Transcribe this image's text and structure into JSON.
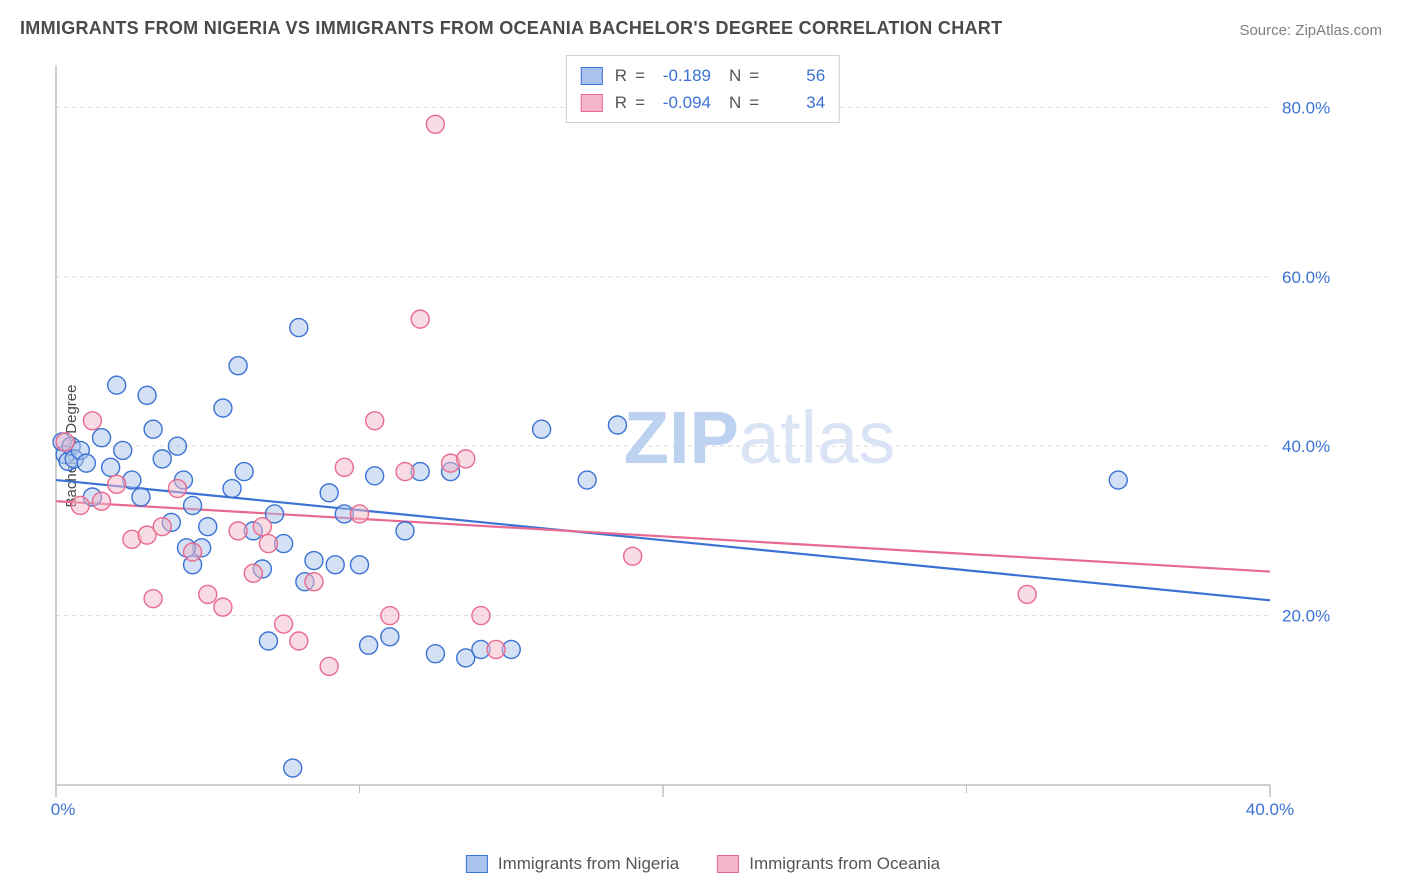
{
  "title": "IMMIGRANTS FROM NIGERIA VS IMMIGRANTS FROM OCEANIA BACHELOR'S DEGREE CORRELATION CHART",
  "source": "Source: ZipAtlas.com",
  "ylabel": "Bachelor's Degree",
  "watermark": "ZIPatlas",
  "chart": {
    "type": "scatter",
    "background_color": "#ffffff",
    "grid_color": "#d9d9d9",
    "axis_color": "#bfbfbf",
    "xlim": [
      0,
      40
    ],
    "ylim": [
      0,
      85
    ],
    "x_ticks": [
      0,
      20,
      40
    ],
    "x_tick_labels": [
      "0.0%",
      "",
      "40.0%"
    ],
    "x_minor_ticks": [
      10,
      30
    ],
    "y_ticks": [
      20,
      40,
      60,
      80
    ],
    "y_tick_labels": [
      "20.0%",
      "40.0%",
      "60.0%",
      "80.0%"
    ],
    "marker_radius": 9,
    "marker_fill_opacity": 0.5,
    "marker_stroke_width": 1.4,
    "line_width": 2.2,
    "series": [
      {
        "id": "nigeria",
        "label": "Immigrants from Nigeria",
        "R": "-0.189",
        "N": "56",
        "color": "#3b72d4",
        "fill": "#a9c3ec",
        "trend": {
          "y_at_xmin": 36.0,
          "y_at_xmax": 21.8
        },
        "points": [
          [
            0.2,
            40.5
          ],
          [
            0.3,
            39.0
          ],
          [
            0.4,
            38.2
          ],
          [
            0.5,
            40.0
          ],
          [
            0.6,
            38.5
          ],
          [
            0.8,
            39.5
          ],
          [
            1.0,
            38.0
          ],
          [
            1.5,
            41.0
          ],
          [
            1.8,
            37.5
          ],
          [
            2.0,
            47.2
          ],
          [
            2.2,
            39.5
          ],
          [
            2.5,
            36.0
          ],
          [
            3.0,
            46.0
          ],
          [
            3.2,
            42.0
          ],
          [
            3.5,
            38.5
          ],
          [
            4.0,
            40.0
          ],
          [
            4.2,
            36.0
          ],
          [
            4.5,
            33.0
          ],
          [
            4.8,
            28.0
          ],
          [
            5.0,
            30.5
          ],
          [
            5.5,
            44.5
          ],
          [
            6.0,
            49.5
          ],
          [
            6.2,
            37.0
          ],
          [
            6.5,
            30.0
          ],
          [
            7.0,
            17.0
          ],
          [
            7.5,
            28.5
          ],
          [
            7.8,
            2.0
          ],
          [
            8.0,
            54.0
          ],
          [
            8.5,
            26.5
          ],
          [
            9.0,
            34.5
          ],
          [
            9.5,
            32.0
          ],
          [
            10.0,
            26.0
          ],
          [
            10.3,
            16.5
          ],
          [
            10.5,
            36.5
          ],
          [
            11.0,
            17.5
          ],
          [
            11.5,
            30.0
          ],
          [
            12.0,
            37.0
          ],
          [
            12.5,
            15.5
          ],
          [
            13.0,
            37.0
          ],
          [
            13.5,
            15.0
          ],
          [
            14.0,
            16.0
          ],
          [
            15.0,
            16.0
          ],
          [
            16.0,
            42.0
          ],
          [
            17.5,
            36.0
          ],
          [
            18.5,
            42.5
          ],
          [
            35.0,
            36.0
          ],
          [
            4.5,
            26.0
          ],
          [
            5.8,
            35.0
          ],
          [
            6.8,
            25.5
          ],
          [
            7.2,
            32.0
          ],
          [
            8.2,
            24.0
          ],
          [
            9.2,
            26.0
          ],
          [
            3.8,
            31.0
          ],
          [
            4.3,
            28.0
          ],
          [
            2.8,
            34.0
          ],
          [
            1.2,
            34.0
          ]
        ]
      },
      {
        "id": "oceania",
        "label": "Immigrants from Oceania",
        "R": "-0.094",
        "N": "34",
        "color": "#e86a8f",
        "fill": "#f4b7c9",
        "trend": {
          "y_at_xmin": 33.5,
          "y_at_xmax": 25.2
        },
        "points": [
          [
            0.3,
            40.5
          ],
          [
            0.8,
            33.0
          ],
          [
            1.2,
            43.0
          ],
          [
            1.5,
            33.5
          ],
          [
            2.0,
            35.5
          ],
          [
            2.5,
            29.0
          ],
          [
            3.0,
            29.5
          ],
          [
            3.2,
            22.0
          ],
          [
            3.5,
            30.5
          ],
          [
            4.0,
            35.0
          ],
          [
            4.5,
            27.5
          ],
          [
            5.0,
            22.5
          ],
          [
            5.5,
            21.0
          ],
          [
            6.0,
            30.0
          ],
          [
            6.5,
            25.0
          ],
          [
            7.0,
            28.5
          ],
          [
            7.5,
            19.0
          ],
          [
            8.0,
            17.0
          ],
          [
            8.5,
            24.0
          ],
          [
            9.0,
            14.0
          ],
          [
            9.5,
            37.5
          ],
          [
            10.0,
            32.0
          ],
          [
            10.5,
            43.0
          ],
          [
            11.0,
            20.0
          ],
          [
            11.5,
            37.0
          ],
          [
            12.0,
            55.0
          ],
          [
            12.5,
            78.0
          ],
          [
            13.0,
            38.0
          ],
          [
            13.5,
            38.5
          ],
          [
            14.0,
            20.0
          ],
          [
            14.5,
            16.0
          ],
          [
            19.0,
            27.0
          ],
          [
            32.0,
            22.5
          ],
          [
            6.8,
            30.5
          ]
        ]
      }
    ]
  },
  "legend_top_labels": {
    "R": "R",
    "eq": "=",
    "N": "N"
  }
}
